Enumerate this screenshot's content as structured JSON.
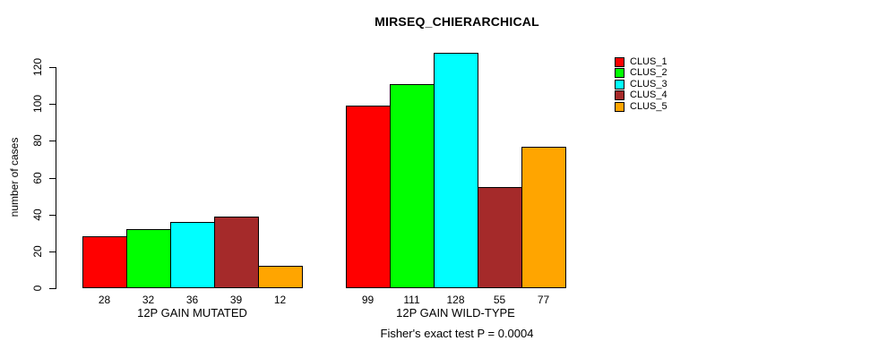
{
  "chart_data": {
    "type": "bar",
    "title": "MIRSEQ_CHIERARCHICAL",
    "ylabel": "number of cases",
    "xlabel": "",
    "ylim": [
      0,
      128
    ],
    "yticks": [
      0,
      20,
      40,
      60,
      80,
      100,
      120
    ],
    "grid": false,
    "legend_position": "top-right",
    "categories": [
      "12P GAIN MUTATED",
      "12P GAIN WILD-TYPE"
    ],
    "series": [
      {
        "name": "CLUS_1",
        "color": "#FF0000",
        "values": [
          28,
          99
        ]
      },
      {
        "name": "CLUS_2",
        "color": "#00FF00",
        "values": [
          32,
          111
        ]
      },
      {
        "name": "CLUS_3",
        "color": "#00FFFF",
        "values": [
          36,
          128
        ]
      },
      {
        "name": "CLUS_4",
        "color": "#A52A2A",
        "values": [
          39,
          55
        ]
      },
      {
        "name": "CLUS_5",
        "color": "#FFA500",
        "values": [
          12,
          77
        ]
      }
    ],
    "bar_value_labels": [
      [
        28,
        32,
        36,
        39,
        12
      ],
      [
        99,
        111,
        128,
        55,
        77
      ]
    ],
    "annotation": "Fisher's exact test P = 0.0004",
    "colors": {
      "axis": "#000000",
      "text": "#000000",
      "background": "#FFFFFF"
    }
  }
}
